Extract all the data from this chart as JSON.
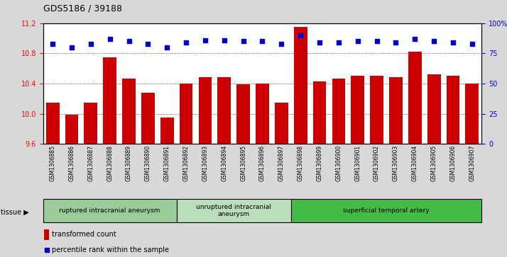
{
  "title": "GDS5186 / 39188",
  "samples": [
    "GSM1306885",
    "GSM1306886",
    "GSM1306887",
    "GSM1306888",
    "GSM1306889",
    "GSM1306890",
    "GSM1306891",
    "GSM1306892",
    "GSM1306893",
    "GSM1306894",
    "GSM1306895",
    "GSM1306896",
    "GSM1306897",
    "GSM1306898",
    "GSM1306899",
    "GSM1306900",
    "GSM1306901",
    "GSM1306902",
    "GSM1306903",
    "GSM1306904",
    "GSM1306905",
    "GSM1306906",
    "GSM1306907"
  ],
  "bar_values": [
    10.15,
    9.99,
    10.15,
    10.75,
    10.47,
    10.28,
    9.95,
    10.4,
    10.48,
    10.48,
    10.39,
    10.4,
    10.15,
    11.15,
    10.43,
    10.47,
    10.5,
    10.5,
    10.48,
    10.82,
    10.52,
    10.5,
    10.4
  ],
  "percentile_values": [
    83,
    80,
    83,
    87,
    85,
    83,
    80,
    84,
    86,
    86,
    85,
    85,
    83,
    90,
    84,
    84,
    85,
    85,
    84,
    87,
    85,
    84,
    83
  ],
  "ymin": 9.6,
  "ymax": 11.2,
  "ylim_right": [
    0,
    100
  ],
  "yticks_left": [
    9.6,
    10.0,
    10.4,
    10.8,
    11.2
  ],
  "yticks_right": [
    0,
    25,
    50,
    75,
    100
  ],
  "ytick_labels_right": [
    "0",
    "25",
    "50",
    "75",
    "100%"
  ],
  "bar_color": "#cc0000",
  "dot_color": "#0000cc",
  "bg_color": "#d8d8d8",
  "plot_bg": "#ffffff",
  "groups": [
    {
      "label": "ruptured intracranial aneurysm",
      "start": 0,
      "end": 7,
      "color": "#99cc99"
    },
    {
      "label": "unruptured intracranial\naneurysm",
      "start": 7,
      "end": 13,
      "color": "#bbddbb"
    },
    {
      "label": "superficial temporal artery",
      "start": 13,
      "end": 23,
      "color": "#44bb44"
    }
  ],
  "legend_bar_label": "transformed count",
  "legend_dot_label": "percentile rank within the sample",
  "tissue_label": "tissue"
}
